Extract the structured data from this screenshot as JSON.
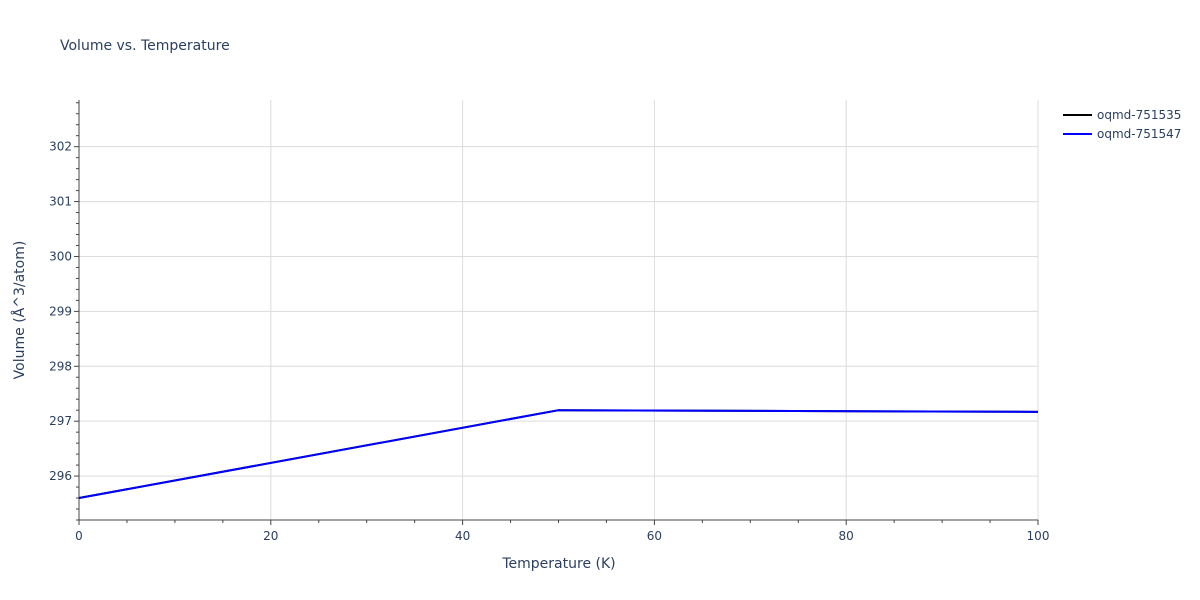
{
  "chart_data": {
    "type": "line",
    "title": "Volume vs. Temperature",
    "xlabel": "Temperature (K)",
    "ylabel": "Volume (Å^3/atom)",
    "xlim": [
      0,
      100
    ],
    "ylim": [
      295.2,
      302.85
    ],
    "x_ticks": [
      0,
      20,
      40,
      60,
      80,
      100
    ],
    "y_ticks": [
      296,
      297,
      298,
      299,
      300,
      301,
      302
    ],
    "grid": true,
    "legend_position": "top-right",
    "series": [
      {
        "name": "oqmd-751535",
        "color": "#000000",
        "x": [
          0,
          50,
          100
        ],
        "y": [
          295.6,
          297.2,
          297.17
        ]
      },
      {
        "name": "oqmd-751547",
        "color": "#0000ff",
        "x": [
          0,
          50,
          100
        ],
        "y": [
          295.6,
          297.2,
          297.17
        ]
      }
    ]
  }
}
